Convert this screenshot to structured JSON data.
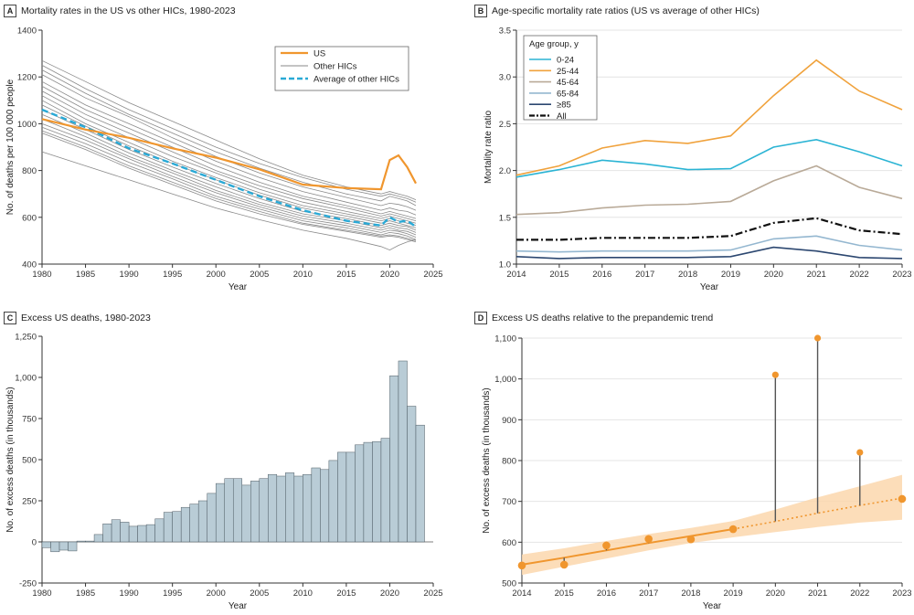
{
  "colors": {
    "us": "#f0962e",
    "other_hics": "#8a8a8a",
    "avg_hics": "#29a9d6",
    "age_0_24": "#2bb4d4",
    "age_25_44": "#f0a23c",
    "age_45_64": "#b9aa98",
    "age_65_84": "#94b7d0",
    "age_85": "#2c4770",
    "all": "#111111",
    "bars": "#b9ccd6",
    "bar_edge": "#4d5a63",
    "trend": "#f0962e",
    "band": "#fbd7ad",
    "stem": "#555555"
  },
  "panels": {
    "a": {
      "letter": "A",
      "title": "Mortality rates in the US vs other HICs, 1980-2023"
    },
    "b": {
      "letter": "B",
      "title": "Age-specific mortality rate ratios (US vs average of other HICs)"
    },
    "c": {
      "letter": "C",
      "title": "Excess US deaths, 1980-2023"
    },
    "d": {
      "letter": "D",
      "title": "Excess US deaths relative to the prepandemic trend"
    }
  },
  "chart_data": [
    {
      "panel": "A",
      "type": "line",
      "xlabel": "Year",
      "ylabel": "No. of deaths per 100 000 people",
      "xlim": [
        1980,
        2025
      ],
      "ylim": [
        400,
        1400
      ],
      "xticks": [
        1980,
        1985,
        1990,
        1995,
        2000,
        2005,
        2010,
        2015,
        2020,
        2025
      ],
      "yticks": [
        400,
        600,
        800,
        1000,
        1200,
        1400
      ],
      "legend_position": "top-right",
      "legend": [
        "US",
        "Other HICs",
        "Average of other HICs"
      ],
      "x": [
        1980,
        1985,
        1990,
        1995,
        2000,
        2005,
        2010,
        2015,
        2019,
        2020,
        2021,
        2022,
        2023
      ],
      "series": [
        {
          "name": "US",
          "values": [
            1020,
            975,
            940,
            895,
            855,
            805,
            740,
            725,
            720,
            845,
            865,
            815,
            745
          ]
        },
        {
          "name": "Average of other HICs",
          "values": [
            1060,
            985,
            895,
            830,
            760,
            690,
            630,
            585,
            565,
            600,
            580,
            585,
            560
          ]
        }
      ],
      "other_hics": [
        [
          1270,
          1180,
          1090,
          1010,
          930,
          850,
          780,
          730,
          700,
          710,
          700,
          690,
          675
        ],
        [
          1250,
          1150,
          1060,
          980,
          900,
          830,
          770,
          720,
          690,
          700,
          690,
          680,
          665
        ],
        [
          1230,
          1130,
          1040,
          960,
          880,
          810,
          750,
          700,
          670,
          690,
          680,
          670,
          650
        ],
        [
          1210,
          1110,
          1030,
          940,
          860,
          790,
          730,
          685,
          650,
          660,
          655,
          645,
          630
        ],
        [
          1180,
          1080,
          1000,
          920,
          840,
          770,
          710,
          665,
          630,
          640,
          630,
          625,
          610
        ],
        [
          1160,
          1060,
          980,
          900,
          820,
          750,
          690,
          650,
          615,
          625,
          615,
          605,
          595
        ],
        [
          1140,
          1040,
          960,
          880,
          800,
          735,
          680,
          640,
          605,
          615,
          605,
          595,
          585
        ],
        [
          1120,
          1020,
          940,
          860,
          790,
          720,
          665,
          625,
          595,
          605,
          595,
          585,
          575
        ],
        [
          1100,
          1000,
          920,
          840,
          770,
          705,
          650,
          615,
          585,
          595,
          585,
          575,
          565
        ],
        [
          1080,
          990,
          905,
          830,
          760,
          695,
          640,
          605,
          575,
          585,
          575,
          565,
          555
        ],
        [
          1060,
          975,
          890,
          815,
          745,
          680,
          625,
          595,
          565,
          575,
          565,
          560,
          545
        ],
        [
          1040,
          960,
          875,
          800,
          730,
          665,
          615,
          585,
          555,
          565,
          555,
          550,
          535
        ],
        [
          1020,
          945,
          860,
          790,
          715,
          655,
          605,
          575,
          545,
          555,
          545,
          540,
          525
        ],
        [
          1000,
          930,
          850,
          775,
          705,
          645,
          595,
          565,
          535,
          545,
          540,
          530,
          515
        ],
        [
          985,
          915,
          835,
          765,
          690,
          635,
          585,
          555,
          525,
          535,
          530,
          520,
          505
        ],
        [
          970,
          900,
          820,
          750,
          680,
          625,
          575,
          545,
          520,
          525,
          520,
          510,
          500
        ],
        [
          960,
          890,
          810,
          740,
          670,
          615,
          570,
          540,
          515,
          520,
          515,
          505,
          495
        ],
        [
          880,
          820,
          760,
          700,
          640,
          590,
          545,
          510,
          475,
          460,
          480,
          495,
          505
        ]
      ]
    },
    {
      "panel": "B",
      "type": "line",
      "xlabel": "Year",
      "ylabel": "Mortality rate ratio",
      "xlim": [
        2014,
        2023
      ],
      "ylim": [
        1.0,
        3.5
      ],
      "xticks": [
        2014,
        2015,
        2016,
        2017,
        2018,
        2019,
        2020,
        2021,
        2022,
        2023
      ],
      "yticks": [
        1.0,
        1.5,
        2.0,
        2.5,
        3.0,
        3.5
      ],
      "legend_title": "Age group, y",
      "legend_position": "top-left",
      "x": [
        2014,
        2015,
        2016,
        2017,
        2018,
        2019,
        2020,
        2021,
        2022,
        2023
      ],
      "series": [
        {
          "name": "0-24",
          "values": [
            1.93,
            2.01,
            2.11,
            2.07,
            2.01,
            2.02,
            2.25,
            2.33,
            2.2,
            2.05
          ]
        },
        {
          "name": "25-44",
          "values": [
            1.95,
            2.05,
            2.24,
            2.32,
            2.29,
            2.37,
            2.8,
            3.18,
            2.85,
            2.65
          ]
        },
        {
          "name": "45-64",
          "values": [
            1.53,
            1.55,
            1.6,
            1.63,
            1.64,
            1.67,
            1.89,
            2.05,
            1.82,
            1.7
          ]
        },
        {
          "name": "65-84",
          "values": [
            1.14,
            1.13,
            1.14,
            1.14,
            1.14,
            1.15,
            1.27,
            1.3,
            1.2,
            1.15
          ]
        },
        {
          "name": "≥85",
          "values": [
            1.08,
            1.06,
            1.07,
            1.07,
            1.07,
            1.08,
            1.18,
            1.14,
            1.07,
            1.06
          ]
        },
        {
          "name": "All",
          "values": [
            1.26,
            1.26,
            1.28,
            1.28,
            1.28,
            1.3,
            1.44,
            1.49,
            1.36,
            1.32
          ]
        }
      ]
    },
    {
      "panel": "C",
      "type": "bar",
      "xlabel": "Year",
      "ylabel": "No. of excess deaths (in thousands)",
      "xlim": [
        1980,
        2025
      ],
      "ylim": [
        -250,
        1250
      ],
      "xticks": [
        1980,
        1985,
        1990,
        1995,
        2000,
        2005,
        2010,
        2015,
        2020,
        2025
      ],
      "yticks": [
        -250,
        0,
        250,
        500,
        750,
        1000,
        1250
      ],
      "categories": [
        1980,
        1981,
        1982,
        1983,
        1984,
        1985,
        1986,
        1987,
        1988,
        1989,
        1990,
        1991,
        1992,
        1993,
        1994,
        1995,
        1996,
        1997,
        1998,
        1999,
        2000,
        2001,
        2002,
        2003,
        2004,
        2005,
        2006,
        2007,
        2008,
        2009,
        2010,
        2011,
        2012,
        2013,
        2014,
        2015,
        2016,
        2017,
        2018,
        2019,
        2020,
        2021,
        2022,
        2023
      ],
      "values": [
        -35,
        -60,
        -50,
        -55,
        5,
        5,
        45,
        110,
        135,
        120,
        95,
        100,
        105,
        140,
        180,
        185,
        210,
        230,
        250,
        295,
        355,
        385,
        385,
        345,
        370,
        385,
        410,
        400,
        420,
        400,
        410,
        450,
        440,
        495,
        545,
        545,
        590,
        605,
        610,
        630,
        1010,
        1100,
        825,
        710
      ]
    },
    {
      "panel": "D",
      "type": "scatter",
      "xlabel": "Year",
      "ylabel": "No. of excess deaths (in thousands)",
      "xlim": [
        2014,
        2023
      ],
      "ylim": [
        500,
        1100
      ],
      "xticks": [
        2014,
        2015,
        2016,
        2017,
        2018,
        2019,
        2020,
        2021,
        2022,
        2023
      ],
      "yticks": [
        500,
        600,
        700,
        800,
        900,
        1000,
        1100
      ],
      "x": [
        2014,
        2015,
        2016,
        2017,
        2018,
        2019,
        2020,
        2021,
        2022,
        2023
      ],
      "observed": [
        543,
        545,
        592,
        608,
        607,
        632,
        1010,
        1100,
        820,
        706
      ],
      "trend": [
        545,
        562,
        580,
        598,
        615,
        632,
        651,
        671,
        690,
        708
      ],
      "band_lower": [
        520,
        540,
        560,
        580,
        598,
        612,
        625,
        637,
        648,
        655
      ],
      "band_upper": [
        570,
        585,
        603,
        620,
        635,
        652,
        680,
        710,
        737,
        765
      ]
    }
  ]
}
